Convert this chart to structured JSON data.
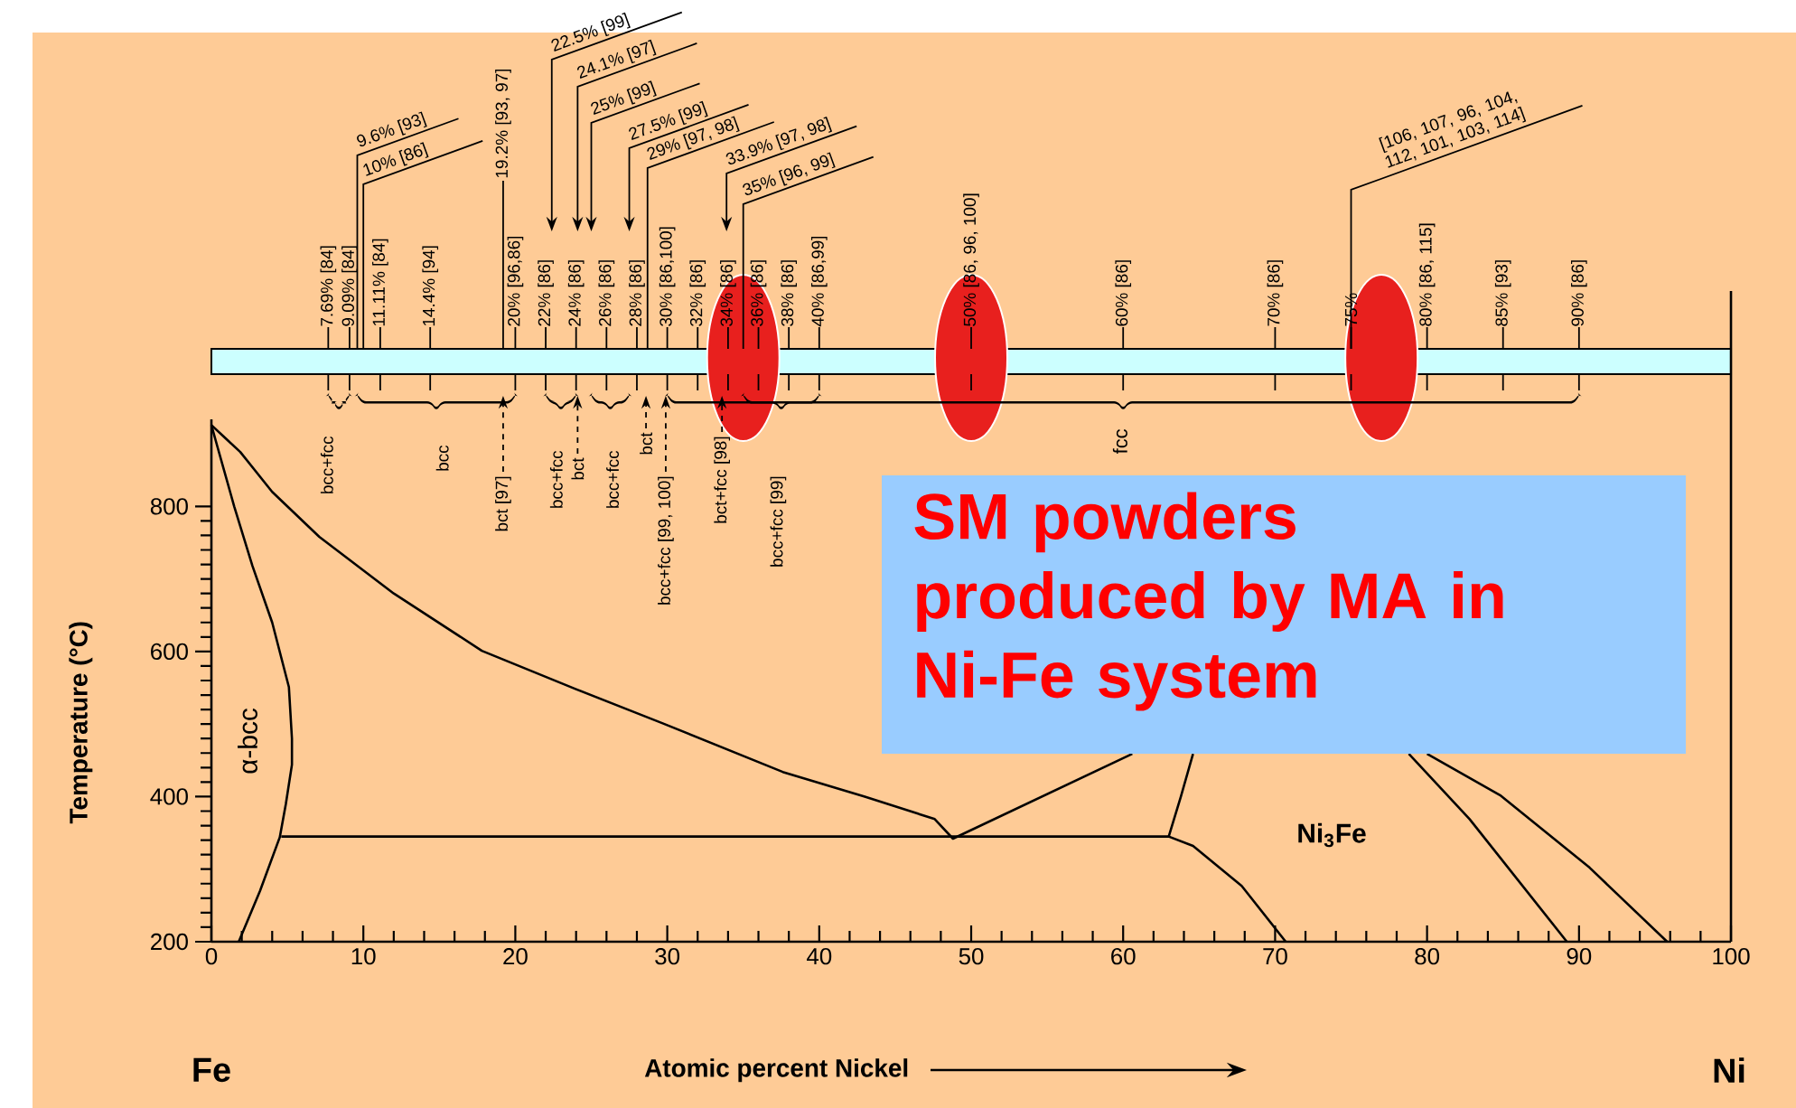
{
  "chart_data": {
    "type": "line",
    "xlabel": "Atomic percent Nickel",
    "ylabel": "Temperature (°C)",
    "xlim": [
      0,
      100
    ],
    "ylim": [
      200,
      920
    ],
    "xticks": [
      0,
      10,
      20,
      30,
      40,
      50,
      60,
      70,
      80,
      90,
      100
    ],
    "yticks": [
      200,
      400,
      600,
      800
    ],
    "grid": false,
    "marker": "none",
    "line_style": "solid",
    "series": [
      {
        "color": "#000000",
        "x": [
          0,
          1.9,
          4,
          7.1,
          12,
          17.8,
          24,
          29.7,
          37.6,
          43,
          47.6,
          48.8,
          60.6
        ],
        "values": [
          912,
          875,
          820,
          758,
          680,
          601,
          548,
          501,
          434,
          400,
          369,
          342,
          459
        ]
      },
      {
        "color": "#000000",
        "x": [
          0,
          0.4,
          1.5,
          2.7,
          4,
          5.1,
          5.3,
          5.3,
          4.9,
          4.5,
          3.2,
          1.8
        ],
        "values": [
          912,
          882,
          800,
          718,
          640,
          551,
          480,
          444,
          390,
          344,
          270,
          200
        ]
      },
      {
        "color": "#000000",
        "x": [
          4.6,
          63,
          64.6,
          67.8,
          70.7
        ],
        "values": [
          345,
          345,
          332,
          277,
          200
        ]
      },
      {
        "color": "#000000",
        "x": [
          63,
          63.8,
          64.6
        ],
        "values": [
          345,
          400,
          459
        ]
      },
      {
        "color": "#000000",
        "x": [
          78.8,
          82.8,
          89.2
        ],
        "values": [
          459,
          369,
          200
        ]
      },
      {
        "color": "#000000",
        "x": [
          80,
          84.8,
          90.7,
          95.8
        ],
        "values": [
          459,
          402,
          302,
          200
        ]
      }
    ],
    "annotations": [
      "SM powders produced by MA in Ni-Fe system",
      "α-bcc",
      "Ni$_{3}$Fe",
      "Fe",
      "Ni",
      "7.69% [84]",
      "9.09% [84]",
      "11.11% [84]",
      "14.4% [94]",
      "20% [96,86]",
      "22% [86]",
      "24% [86]",
      "26% [86]",
      "28% [86]",
      "30% [86,100]",
      "32% [86]",
      "34% [86]",
      "36% [86]",
      "38% [86]",
      "40% [86,99]",
      "50% [86, 96, 100]",
      "60% [86]",
      "70% [86]",
      "75%",
      "80% [86, 115]",
      "85% [93]",
      "90% [86]",
      "9.6% [93]",
      "10% [86]",
      "19.2% [93, 97]",
      "22.5% [99]",
      "24.1% [97]",
      "25% [99]",
      "27.5% [99]",
      "29% [97, 98]",
      "33.9% [97, 98]",
      "35% [96, 99]",
      "[106, 107, 96, 104, 112, 101, 103, 114]",
      "bcc+fcc",
      "bcc",
      "bct [97]",
      "bcc+fcc",
      "bct",
      "bcc+fcc",
      "bct",
      "bcc+fcc [99, 100]",
      "bct+fcc [98]",
      "bcc+fcc [99]",
      "fcc"
    ]
  }
}
